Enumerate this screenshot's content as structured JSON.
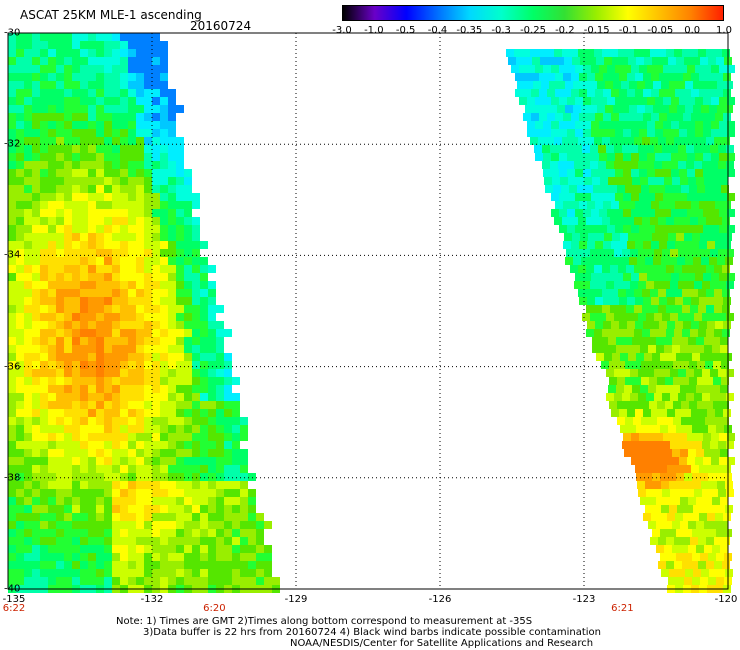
{
  "header": {
    "title": "ASCAT 25KM MLE-1 ascending",
    "date": "20160724"
  },
  "colorbar": {
    "labels": [
      "-3.0",
      "-1.0",
      "-0.5",
      "-0.4",
      "-0.35",
      "-0.3",
      "-0.25",
      "-0.2",
      "-0.15",
      "-0.1",
      "-0.05",
      "0.0",
      "1.0"
    ],
    "colors": [
      "#000000",
      "#6a00c8",
      "#0000ff",
      "#0070ff",
      "#00d8ff",
      "#00ffcc",
      "#00ff66",
      "#33e033",
      "#99ee00",
      "#ffff00",
      "#ffc000",
      "#ff8000",
      "#ff2000"
    ]
  },
  "axes": {
    "lat_labels": [
      "-30",
      "-32",
      "-34",
      "-36",
      "-38",
      "-40"
    ],
    "lon_labels": [
      "-135",
      "-132",
      "-129",
      "-126",
      "-123",
      "-120"
    ],
    "lat_range": [
      -40,
      -30
    ],
    "lon_range": [
      -135,
      -120
    ]
  },
  "time_labels": [
    {
      "text": "6:22",
      "lon": -135
    },
    {
      "text": "6:20",
      "lon": -130.7
    },
    {
      "text": "6:21",
      "lon": -122.2
    }
  ],
  "notes": {
    "line1": "Note: 1) Times are GMT 2)Times along bottom correspond to measurement at -35S",
    "line2": "3)Data buffer is 22 hrs from 20160724 4) Black wind barbs indicate possible contamination",
    "line3": "NOAA/NESDIS/Center for Satellite Applications and Research"
  }
}
